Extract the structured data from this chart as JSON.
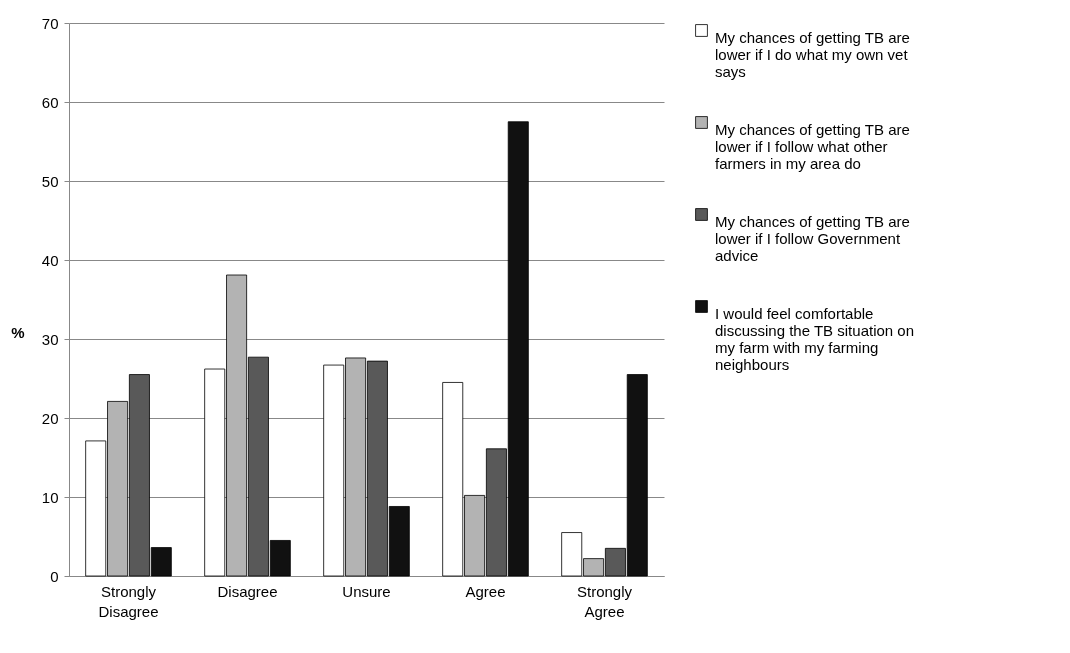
{
  "chart_data": {
    "type": "bar",
    "ylabel": "%",
    "categories": [
      "Strongly Disagree",
      "Disagree",
      "Unsure",
      "Agree",
      "Strongly Agree"
    ],
    "series": [
      {
        "name": "My chances of getting TB are lower if I do what my own vet says",
        "color": "#ffffff",
        "values": [
          17.1,
          26.2,
          26.7,
          24.5,
          5.5
        ]
      },
      {
        "name": "My chances of getting TB are lower if I follow what other farmers in my area do",
        "color": "#b3b3b3",
        "values": [
          22.1,
          38.1,
          27.6,
          10.2,
          2.2
        ]
      },
      {
        "name": "My chances of getting TB are lower if I follow Government advice",
        "color": "#595959",
        "values": [
          25.5,
          27.7,
          27.2,
          16.1,
          3.5
        ]
      },
      {
        "name": "I would feel comfortable discussing the TB situation on my farm with my farming neighbours",
        "color": "#111111",
        "values": [
          3.6,
          4.5,
          8.8,
          57.5,
          25.5
        ]
      }
    ],
    "ylim": [
      0,
      70
    ],
    "yticks": [
      0,
      10,
      20,
      30,
      40,
      50,
      60,
      70
    ],
    "grid": "y",
    "legend": "right"
  }
}
